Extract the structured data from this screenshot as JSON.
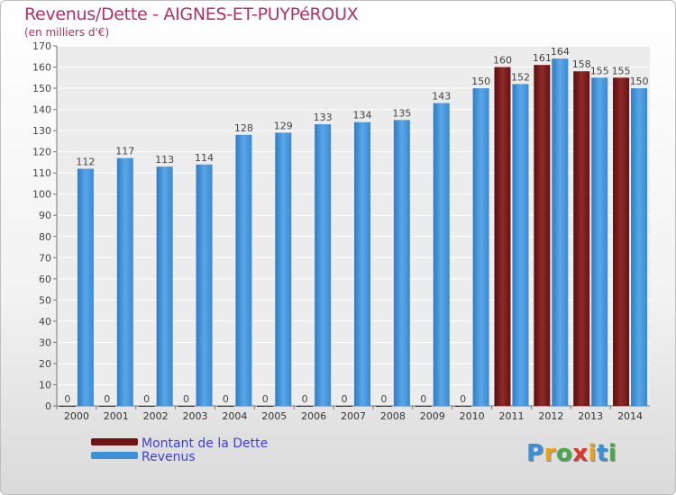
{
  "header": {
    "title": "Revenus/Dette - AIGNES-ET-PUYPéROUX",
    "subtitle": "(en milliers d'€)"
  },
  "chart_data": {
    "type": "bar",
    "categories": [
      "2000",
      "2001",
      "2002",
      "2003",
      "2004",
      "2005",
      "2006",
      "2007",
      "2008",
      "2009",
      "2010",
      "2011",
      "2012",
      "2013",
      "2014"
    ],
    "series": [
      {
        "name": "Montant de la Dette",
        "color": "#6e1414",
        "values": [
          0,
          0,
          0,
          0,
          0,
          0,
          0,
          0,
          0,
          0,
          0,
          160,
          161,
          158,
          155
        ]
      },
      {
        "name": "Revenus",
        "color": "#3d8fd6",
        "values": [
          112,
          117,
          113,
          114,
          128,
          129,
          133,
          134,
          135,
          143,
          150,
          152,
          164,
          155,
          150
        ]
      }
    ],
    "ylim": [
      0,
      170
    ],
    "yticks": [
      0,
      10,
      20,
      30,
      40,
      50,
      60,
      70,
      80,
      90,
      100,
      110,
      120,
      130,
      140,
      150,
      160,
      170
    ],
    "grid": true,
    "legend_position": "bottom-left"
  },
  "logo": {
    "letters": [
      "P",
      "r",
      "o",
      "x",
      "i",
      "t",
      "i"
    ],
    "colors": [
      "#3d8fd6",
      "#e8a21a",
      "#4aa84a",
      "#d9392b",
      "#e8a21a",
      "#3d8fd6",
      "#4aa84a"
    ]
  }
}
